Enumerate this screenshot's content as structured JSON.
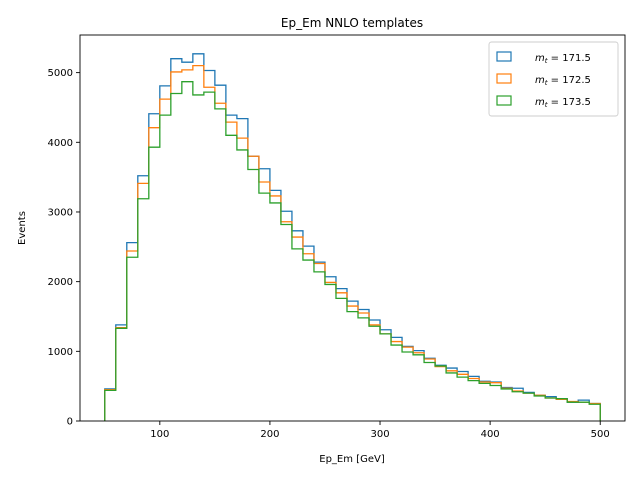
{
  "chart_data": {
    "type": "step-histogram",
    "title": "Ep_Em NNLO templates",
    "xlabel": "Ep_Em [GeV]",
    "ylabel": "Events",
    "xlim": [
      27.5,
      522.5
    ],
    "ylim": [
      0,
      5540
    ],
    "xticks": [
      100,
      200,
      300,
      400,
      500
    ],
    "yticks": [
      0,
      1000,
      2000,
      3000,
      4000,
      5000
    ],
    "grid": false,
    "legend_position": "top-right",
    "bin_edges": [
      50,
      60,
      70,
      80,
      90,
      100,
      110,
      120,
      130,
      140,
      150,
      160,
      170,
      180,
      190,
      200,
      210,
      220,
      230,
      240,
      250,
      260,
      270,
      280,
      290,
      300,
      310,
      320,
      330,
      340,
      350,
      360,
      370,
      380,
      390,
      400,
      410,
      420,
      430,
      440,
      450,
      460,
      470,
      480,
      490,
      500
    ],
    "series": [
      {
        "name": "$m_t$ = 171.5",
        "label_main": "m",
        "label_sub": "t",
        "label_rest": " = 171.5",
        "color": "#1f77b4",
        "values": [
          460,
          1380,
          2560,
          3520,
          4410,
          4810,
          5200,
          5150,
          5270,
          5030,
          4820,
          4390,
          4340,
          3800,
          3620,
          3310,
          3010,
          2730,
          2510,
          2280,
          2070,
          1900,
          1720,
          1600,
          1450,
          1310,
          1200,
          1070,
          1010,
          900,
          800,
          760,
          710,
          640,
          570,
          560,
          480,
          470,
          410,
          370,
          350,
          320,
          270,
          300,
          250
        ]
      },
      {
        "name": "$m_t$ = 172.5",
        "label_main": "m",
        "label_sub": "t",
        "label_rest": " = 172.5",
        "color": "#ff7f0e",
        "values": [
          450,
          1340,
          2440,
          3410,
          4210,
          4620,
          5010,
          5040,
          5100,
          4790,
          4560,
          4290,
          4060,
          3800,
          3430,
          3230,
          2860,
          2640,
          2400,
          2260,
          1990,
          1840,
          1650,
          1550,
          1380,
          1250,
          1140,
          1060,
          980,
          890,
          780,
          720,
          670,
          610,
          560,
          550,
          470,
          430,
          400,
          370,
          330,
          310,
          280,
          270,
          250
        ]
      },
      {
        "name": "$m_t$ = 173.5",
        "label_main": "m",
        "label_sub": "t",
        "label_rest": " = 173.5",
        "color": "#2ca02c",
        "values": [
          440,
          1330,
          2350,
          3190,
          3930,
          4390,
          4700,
          4870,
          4680,
          4720,
          4480,
          4100,
          3890,
          3610,
          3270,
          3130,
          2820,
          2470,
          2310,
          2140,
          1960,
          1760,
          1570,
          1480,
          1360,
          1250,
          1090,
          990,
          950,
          840,
          790,
          690,
          630,
          580,
          540,
          510,
          460,
          420,
          400,
          360,
          330,
          320,
          270,
          270,
          240
        ]
      }
    ]
  }
}
